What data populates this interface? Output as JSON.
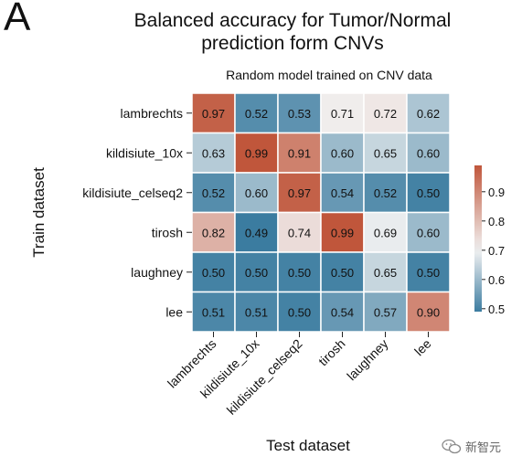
{
  "panel_label": "A",
  "title": "Balanced accuracy for Tumor/Normal prediction form CNVs",
  "title_lines": [
    "Balanced accuracy for Tumor/Normal",
    "prediction form CNVs"
  ],
  "watermark": "新智元",
  "chart_data": {
    "type": "heatmap",
    "title": "Balanced accuracy for Tumor/Normal prediction form CNVs",
    "subtitle": "Random model trained on CNV data",
    "xlabel": "Test dataset",
    "ylabel": "Train dataset",
    "x_categories": [
      "lambrechts",
      "kildisiute_10x",
      "kildisiute_celseq2",
      "tirosh",
      "laughney",
      "lee"
    ],
    "y_categories": [
      "lambrechts",
      "kildisiute_10x",
      "kildisiute_celseq2",
      "tirosh",
      "laughney",
      "lee"
    ],
    "values": [
      [
        0.97,
        0.52,
        0.53,
        0.71,
        0.72,
        0.62
      ],
      [
        0.63,
        0.99,
        0.91,
        0.6,
        0.65,
        0.6
      ],
      [
        0.52,
        0.6,
        0.97,
        0.54,
        0.52,
        0.5
      ],
      [
        0.82,
        0.49,
        0.74,
        0.99,
        0.69,
        0.6
      ],
      [
        0.5,
        0.5,
        0.5,
        0.5,
        0.65,
        0.5
      ],
      [
        0.51,
        0.51,
        0.5,
        0.54,
        0.57,
        0.9
      ]
    ],
    "colorbar": {
      "range": [
        0.49,
        0.99
      ],
      "ticks": [
        0.5,
        0.6,
        0.7,
        0.8,
        0.9
      ],
      "colormap": "diverging blue-white-red",
      "low_color": "#3b7ca0",
      "mid_color": "#f2f2f2",
      "high_color": "#c0563b",
      "center": 0.7
    }
  }
}
